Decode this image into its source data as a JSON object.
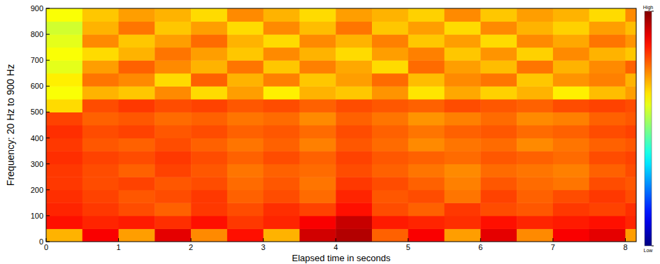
{
  "chart_data": {
    "type": "heatmap",
    "x_label": "Elapsed time in seconds",
    "y_label": "Frequency: 20 Hz to 900 Hz",
    "xlim": [
      0,
      8.15
    ],
    "xticks": [
      0,
      1,
      2,
      3,
      4,
      5,
      6,
      7,
      8
    ],
    "ylim": [
      0,
      900
    ],
    "yticks": [
      0,
      100,
      200,
      300,
      400,
      500,
      600,
      700,
      800,
      900
    ],
    "x_edges": [
      0,
      0.5,
      1,
      1.5,
      2,
      2.5,
      3,
      3.5,
      4,
      4.5,
      5,
      5.5,
      6,
      6.5,
      7,
      7.5,
      8,
      8.15
    ],
    "y_edges": [
      0,
      50,
      100,
      150,
      200,
      250,
      300,
      350,
      400,
      450,
      500,
      550,
      600,
      650,
      700,
      750,
      800,
      850,
      900
    ],
    "cells": [
      [
        0.7,
        0.88,
        0.72,
        0.9,
        0.74,
        0.86,
        0.7,
        0.92,
        0.95,
        0.78,
        0.88,
        0.72,
        0.9,
        0.74,
        0.88,
        0.9,
        0.72
      ],
      [
        0.86,
        0.84,
        0.85,
        0.83,
        0.86,
        0.82,
        0.84,
        0.88,
        0.93,
        0.85,
        0.84,
        0.83,
        0.86,
        0.84,
        0.85,
        0.86,
        0.84
      ],
      [
        0.84,
        0.82,
        0.8,
        0.78,
        0.82,
        0.8,
        0.83,
        0.81,
        0.86,
        0.8,
        0.78,
        0.82,
        0.8,
        0.79,
        0.82,
        0.81,
        0.83
      ],
      [
        0.83,
        0.81,
        0.79,
        0.8,
        0.82,
        0.78,
        0.8,
        0.77,
        0.84,
        0.79,
        0.8,
        0.76,
        0.81,
        0.78,
        0.8,
        0.82,
        0.8
      ],
      [
        0.82,
        0.8,
        0.81,
        0.79,
        0.8,
        0.77,
        0.79,
        0.76,
        0.82,
        0.8,
        0.78,
        0.75,
        0.79,
        0.77,
        0.76,
        0.8,
        0.79
      ],
      [
        0.82,
        0.8,
        0.78,
        0.81,
        0.79,
        0.76,
        0.78,
        0.77,
        0.8,
        0.78,
        0.76,
        0.74,
        0.77,
        0.76,
        0.75,
        0.78,
        0.8
      ],
      [
        0.83,
        0.81,
        0.8,
        0.82,
        0.8,
        0.78,
        0.8,
        0.78,
        0.81,
        0.79,
        0.78,
        0.77,
        0.79,
        0.78,
        0.77,
        0.8,
        0.81
      ],
      [
        0.82,
        0.79,
        0.78,
        0.8,
        0.78,
        0.76,
        0.78,
        0.75,
        0.79,
        0.77,
        0.74,
        0.76,
        0.77,
        0.74,
        0.76,
        0.78,
        0.79
      ],
      [
        0.83,
        0.8,
        0.81,
        0.79,
        0.8,
        0.78,
        0.79,
        0.77,
        0.8,
        0.78,
        0.76,
        0.78,
        0.79,
        0.77,
        0.78,
        0.8,
        0.81
      ],
      [
        0.81,
        0.78,
        0.79,
        0.77,
        0.78,
        0.76,
        0.77,
        0.74,
        0.78,
        0.76,
        0.73,
        0.75,
        0.77,
        0.74,
        0.75,
        0.78,
        0.79
      ],
      [
        0.66,
        0.8,
        0.82,
        0.8,
        0.81,
        0.79,
        0.8,
        0.78,
        0.8,
        0.79,
        0.78,
        0.8,
        0.79,
        0.78,
        0.8,
        0.81,
        0.8
      ],
      [
        0.62,
        0.7,
        0.68,
        0.74,
        0.66,
        0.72,
        0.64,
        0.7,
        0.68,
        0.73,
        0.65,
        0.71,
        0.67,
        0.7,
        0.64,
        0.69,
        0.72
      ],
      [
        0.64,
        0.76,
        0.74,
        0.66,
        0.78,
        0.7,
        0.75,
        0.68,
        0.72,
        0.77,
        0.69,
        0.74,
        0.76,
        0.68,
        0.73,
        0.75,
        0.7
      ],
      [
        0.6,
        0.72,
        0.78,
        0.74,
        0.7,
        0.76,
        0.68,
        0.75,
        0.71,
        0.66,
        0.77,
        0.72,
        0.69,
        0.76,
        0.7,
        0.74,
        0.78
      ],
      [
        0.62,
        0.66,
        0.7,
        0.76,
        0.72,
        0.68,
        0.74,
        0.7,
        0.66,
        0.72,
        0.75,
        0.68,
        0.73,
        0.67,
        0.74,
        0.7,
        0.68
      ],
      [
        0.6,
        0.74,
        0.68,
        0.72,
        0.77,
        0.7,
        0.66,
        0.74,
        0.7,
        0.75,
        0.68,
        0.72,
        0.66,
        0.74,
        0.71,
        0.76,
        0.73
      ],
      [
        0.58,
        0.7,
        0.76,
        0.68,
        0.72,
        0.66,
        0.74,
        0.69,
        0.76,
        0.68,
        0.72,
        0.66,
        0.74,
        0.7,
        0.67,
        0.72,
        0.69
      ],
      [
        0.62,
        0.68,
        0.72,
        0.7,
        0.66,
        0.74,
        0.7,
        0.66,
        0.72,
        0.7,
        0.67,
        0.74,
        0.68,
        0.72,
        0.7,
        0.66,
        0.74
      ]
    ],
    "color_range": [
      0,
      1
    ],
    "color_ticks": [
      {
        "value": 0,
        "label": "Low"
      },
      {
        "value": 1,
        "label": "High"
      }
    ]
  }
}
